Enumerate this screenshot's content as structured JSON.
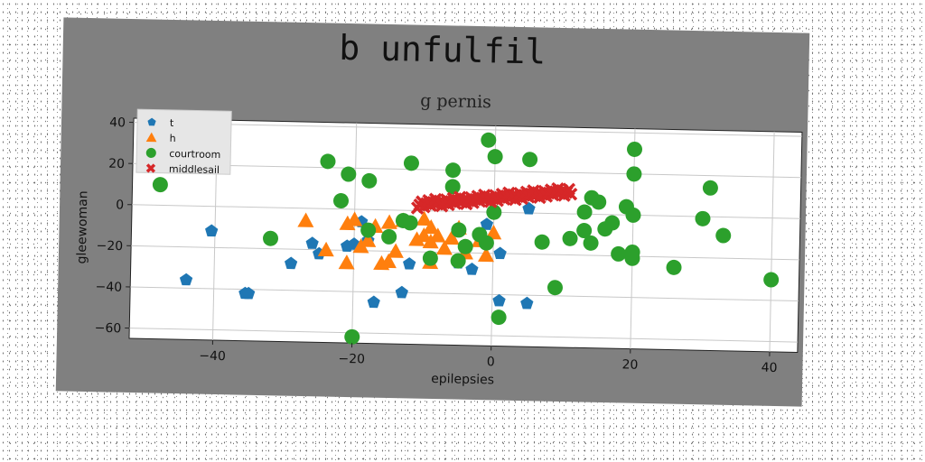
{
  "chart_data": {
    "type": "scatter",
    "title": "b unfulfil",
    "subtitle": "g pernis",
    "xlabel": "epilepsies",
    "ylabel": "gleewoman",
    "xlim": [
      -52,
      44
    ],
    "ylim": [
      -65,
      42
    ],
    "xticks": [
      -40,
      -20,
      0,
      20,
      40
    ],
    "yticks": [
      -60,
      -40,
      -20,
      0,
      20,
      40
    ],
    "grid": true,
    "legend_position": "top-left",
    "series": [
      {
        "name": "t",
        "marker": "pentagon",
        "color": "#1f77b4",
        "points": [
          [
            -44,
            -36
          ],
          [
            -40.5,
            -12
          ],
          [
            -35.5,
            -42
          ],
          [
            -35,
            -42
          ],
          [
            -29,
            -27
          ],
          [
            -26,
            -17
          ],
          [
            -25,
            -22
          ],
          [
            -21,
            -18
          ],
          [
            -20,
            -17
          ],
          [
            -19,
            -6
          ],
          [
            -18,
            -15
          ],
          [
            -17,
            -45
          ],
          [
            -13,
            -40
          ],
          [
            -12,
            -26
          ],
          [
            -5,
            -25
          ],
          [
            -3,
            -28
          ],
          [
            -1,
            -6
          ],
          [
            1,
            -20
          ],
          [
            1,
            -43
          ],
          [
            5,
            2
          ],
          [
            5,
            -44
          ]
        ]
      },
      {
        "name": "h",
        "marker": "triangle",
        "color": "#ff7f0e",
        "points": [
          [
            -27,
            -6
          ],
          [
            -24,
            -20
          ],
          [
            -21,
            -26
          ],
          [
            -21,
            -7
          ],
          [
            -20,
            -5
          ],
          [
            -19,
            -18
          ],
          [
            -18,
            -15
          ],
          [
            -17,
            -8
          ],
          [
            -16,
            -26
          ],
          [
            -15,
            -6
          ],
          [
            -15,
            -25
          ],
          [
            -14,
            -20
          ],
          [
            -13,
            -5
          ],
          [
            -11,
            -14
          ],
          [
            -10,
            -12
          ],
          [
            -10,
            -4
          ],
          [
            -9,
            -8
          ],
          [
            -9,
            -15
          ],
          [
            -9,
            -25
          ],
          [
            -8,
            -12
          ],
          [
            -7,
            -18
          ],
          [
            -6,
            -13
          ],
          [
            -5,
            -8
          ],
          [
            -4,
            -20
          ],
          [
            -1,
            -21
          ],
          [
            -2,
            -14
          ],
          [
            0,
            -10
          ]
        ]
      },
      {
        "name": "courtroom",
        "marker": "circle",
        "color": "#2ca02c",
        "points": [
          [
            -48,
            10
          ],
          [
            -32,
            -15
          ],
          [
            -24,
            23
          ],
          [
            -22,
            4
          ],
          [
            -21,
            17
          ],
          [
            -18,
            14
          ],
          [
            -18,
            -10
          ],
          [
            -15,
            -13
          ],
          [
            -13,
            -5
          ],
          [
            -12,
            -6
          ],
          [
            -12,
            23
          ],
          [
            -9,
            -23
          ],
          [
            -6,
            20
          ],
          [
            -6,
            12
          ],
          [
            -5,
            -9
          ],
          [
            -5,
            -24
          ],
          [
            -4,
            -17
          ],
          [
            -2,
            -11
          ],
          [
            -1,
            35
          ],
          [
            -1,
            -15
          ],
          [
            0,
            27
          ],
          [
            0,
            0
          ],
          [
            1,
            -51
          ],
          [
            5,
            26
          ],
          [
            7,
            -14
          ],
          [
            9,
            -36
          ],
          [
            11,
            -12
          ],
          [
            13,
            1
          ],
          [
            13,
            -8
          ],
          [
            14,
            -14
          ],
          [
            14,
            8
          ],
          [
            15,
            6
          ],
          [
            16,
            -7
          ],
          [
            17,
            -4
          ],
          [
            18,
            -19
          ],
          [
            19,
            4
          ],
          [
            20,
            32
          ],
          [
            20,
            -21
          ],
          [
            20,
            -18
          ],
          [
            20,
            0
          ],
          [
            20,
            20
          ],
          [
            26,
            -25
          ],
          [
            30,
            -1
          ],
          [
            31,
            14
          ],
          [
            33,
            -9
          ],
          [
            40,
            -30
          ],
          [
            -20,
            -62
          ]
        ]
      },
      {
        "name": "middlesail",
        "marker": "x",
        "color": "#d62728",
        "line": {
          "x0": -11,
          "y0": 3,
          "x1": 11,
          "y1": 11,
          "n": 70
        }
      }
    ]
  }
}
